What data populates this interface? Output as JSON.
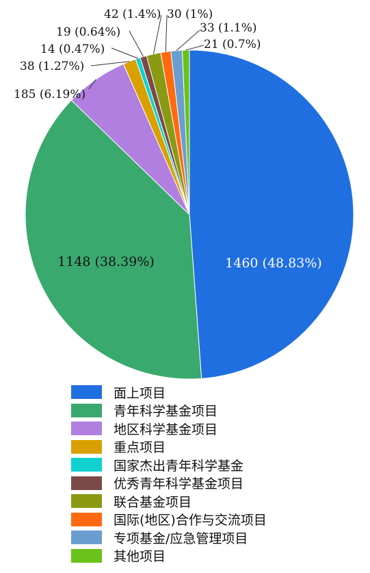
{
  "chart_data": {
    "type": "pie",
    "title": "",
    "slices": [
      {
        "label": "面上项目",
        "value": 1460,
        "percent_label": "1460 (48.83%)",
        "color": "#1f6fe0"
      },
      {
        "label": "青年科学基金项目",
        "value": 1148,
        "percent_label": "1148 (38.39%)",
        "color": "#3aa96e"
      },
      {
        "label": "地区科学基金项目",
        "value": 185,
        "percent_label": "185 (6.19%)",
        "color": "#b07fe0"
      },
      {
        "label": "重点项目",
        "value": 38,
        "percent_label": "38 (1.27%)",
        "color": "#d9a100"
      },
      {
        "label": "国家杰出青年科学基金",
        "value": 14,
        "percent_label": "14 (0.47%)",
        "color": "#10d0d0"
      },
      {
        "label": "优秀青年科学基金项目",
        "value": 19,
        "percent_label": "19 (0.64%)",
        "color": "#7b4a48"
      },
      {
        "label": "联合基金项目",
        "value": 42,
        "percent_label": "42 (1.4%)",
        "color": "#8a9a12"
      },
      {
        "label": "国际(地区)合作与交流项目",
        "value": 30,
        "percent_label": "30 (1%)",
        "color": "#ff6a10"
      },
      {
        "label": "专项基金/应急管理项目",
        "value": 33,
        "percent_label": "33 (1.1%)",
        "color": "#6a9ed0"
      },
      {
        "label": "其他项目",
        "value": 21,
        "percent_label": "21 (0.7%)",
        "color": "#6ac21a"
      }
    ],
    "start": "12 o'clock",
    "direction": "clockwise",
    "legend_position": "bottom"
  }
}
